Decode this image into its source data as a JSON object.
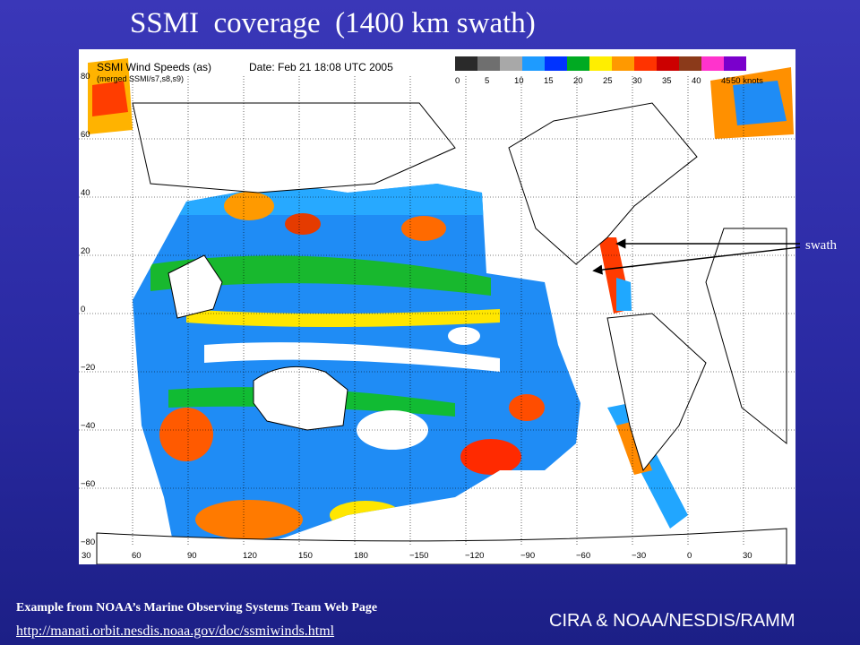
{
  "slide": {
    "title": "SSMI  coverage  (1400 km swath)",
    "swath_label": "swath",
    "credit": "Example from NOAA’s Marine Observing Systems Team Web Page",
    "link": "http://manati.orbit.nesdis.noaa.gov/doc/ssmiwinds.html",
    "organization": "CIRA & NOAA/NESDIS/RAMM"
  },
  "map": {
    "heading": "SSMI Wind Speeds (as)",
    "subheading": "(merged SSMI/s7,s8,s9)",
    "date_label": "Date: Feb 21 18:08 UTC 2005",
    "legend": {
      "unit": "50 knots",
      "ticks": [
        "0",
        "5",
        "10",
        "15",
        "20",
        "25",
        "30",
        "35",
        "40",
        "45"
      ],
      "colors": [
        "#2a2a2a",
        "#6f6f6f",
        "#a8a8a8",
        "#1e9bff",
        "#0033ff",
        "#00aa22",
        "#ffee00",
        "#ff9900",
        "#ff3300",
        "#cc0000",
        "#8b3a1a",
        "#ff33cc",
        "#7a00cc"
      ]
    },
    "lon_labels": [
      "30",
      "60",
      "90",
      "120",
      "150",
      "180",
      "−150",
      "−120",
      "−90",
      "−60",
      "−30",
      "0",
      "30"
    ],
    "lat_labels": [
      "80",
      "60",
      "40",
      "20",
      "0",
      "−20",
      "−40",
      "−60",
      "−80"
    ]
  }
}
